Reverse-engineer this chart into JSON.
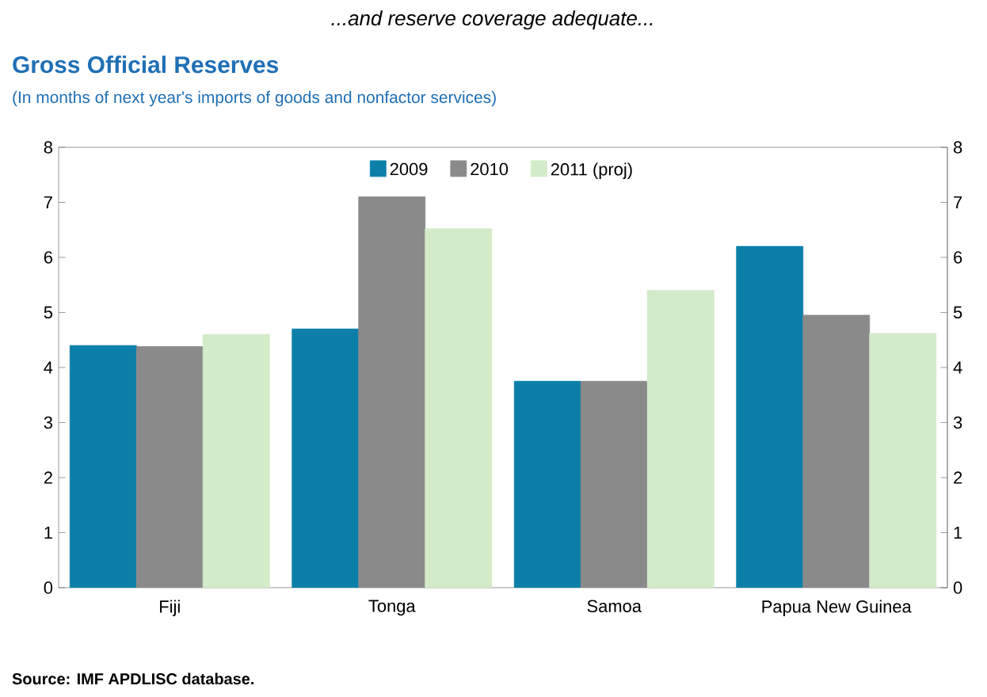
{
  "chart_data": {
    "type": "bar",
    "title": "Gross Official Reserves",
    "subtitle": "(In months of next year's imports of goods and nonfactor services)",
    "annotations": [
      "...and reserve coverage adequate...",
      "Source: IMF APDLISC database."
    ],
    "categories": [
      "Fiji",
      "Tonga",
      "Samoa",
      "Papua New Guinea"
    ],
    "series": [
      {
        "name": "2009",
        "color": "#0b7fa8",
        "values": [
          4.4,
          4.7,
          3.75,
          6.2
        ]
      },
      {
        "name": "2010",
        "color": "#8a8a8a",
        "values": [
          4.38,
          7.1,
          3.75,
          4.95
        ]
      },
      {
        "name": "2011 (proj)",
        "color": "#d3ebc8",
        "values": [
          4.6,
          6.52,
          5.4,
          4.62
        ]
      }
    ],
    "ylim": [
      0,
      8
    ],
    "yticks": [
      0,
      1,
      2,
      3,
      4,
      5,
      6,
      7,
      8
    ],
    "y2lim": [
      0,
      8
    ],
    "y2ticks": [
      0,
      1,
      2,
      3,
      4,
      5,
      6,
      7,
      8
    ],
    "grid": false,
    "legend": "top"
  }
}
